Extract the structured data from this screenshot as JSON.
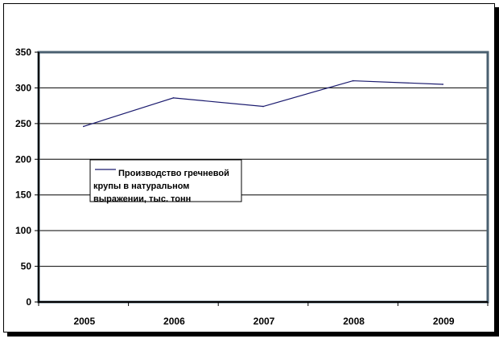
{
  "chart_data": {
    "type": "line",
    "title": "",
    "xlabel": "",
    "ylabel": "",
    "categories": [
      "2005",
      "2006",
      "2007",
      "2008",
      "2009"
    ],
    "series": [
      {
        "name": "Производство гречневой крупы в натуральном выражении, тыс. тонн",
        "values": [
          246,
          286,
          274,
          310,
          305
        ]
      }
    ],
    "ylim": [
      0,
      350
    ],
    "yticks": [
      0,
      50,
      100,
      150,
      200,
      250,
      300,
      350
    ],
    "y_tick_labels": [
      "0",
      "50",
      "100",
      "150",
      "200",
      "250",
      "300",
      "350"
    ],
    "grid": true,
    "legend_position": "inside-left",
    "legend_lines": [
      "Производство гречневой",
      "крупы в натуральном",
      "выражении, тыс. тонн"
    ],
    "colors": {
      "series_line": "#1a1a6e",
      "plot_border": "#4a6070",
      "gridline": "#000000"
    }
  }
}
